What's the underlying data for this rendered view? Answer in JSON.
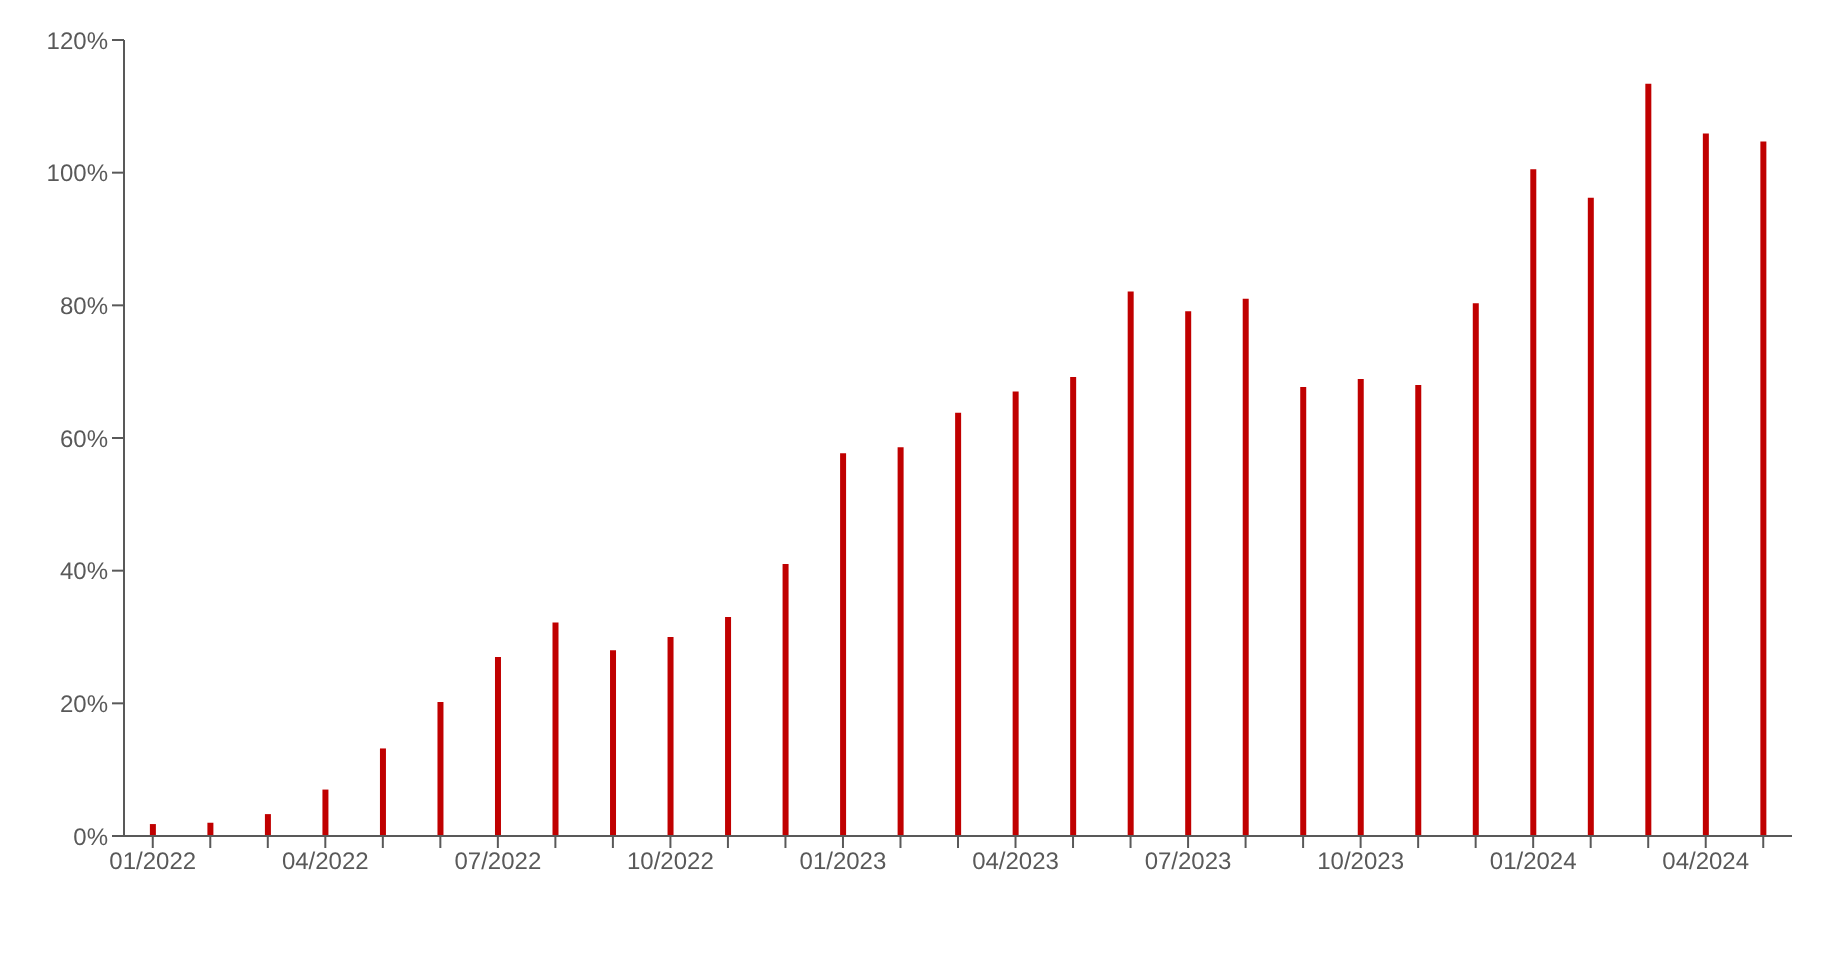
{
  "chart_data": {
    "type": "bar",
    "categories": [
      "01/2022",
      null,
      null,
      "04/2022",
      null,
      null,
      "07/2022",
      null,
      null,
      "10/2022",
      null,
      null,
      "01/2023",
      null,
      null,
      "04/2023",
      null,
      null,
      "07/2023",
      null,
      null,
      "10/2023",
      null,
      null,
      "01/2024",
      null,
      null,
      "04/2024",
      null
    ],
    "series": [
      {
        "color": "#c00000",
        "values": [
          1.8,
          2,
          3.3,
          7,
          13.2,
          20.2,
          27,
          32.2,
          28,
          30,
          33,
          41,
          57.7,
          58.6,
          63.8,
          67,
          69.2,
          82.1,
          79.1,
          81,
          67.7,
          68.9,
          68,
          80.3,
          100.5,
          96.2,
          113.4,
          105.9,
          104.7
        ]
      }
    ],
    "ylim": [
      0,
      120
    ],
    "yticks": [
      {
        "value": 0,
        "label": "0%"
      },
      {
        "value": 20,
        "label": "20%"
      },
      {
        "value": 40,
        "label": "40%"
      },
      {
        "value": 60,
        "label": "60%"
      },
      {
        "value": 80,
        "label": "80%"
      },
      {
        "value": 100,
        "label": "100%"
      },
      {
        "value": 120,
        "label": "120%"
      }
    ],
    "grid": false,
    "legend": false
  }
}
